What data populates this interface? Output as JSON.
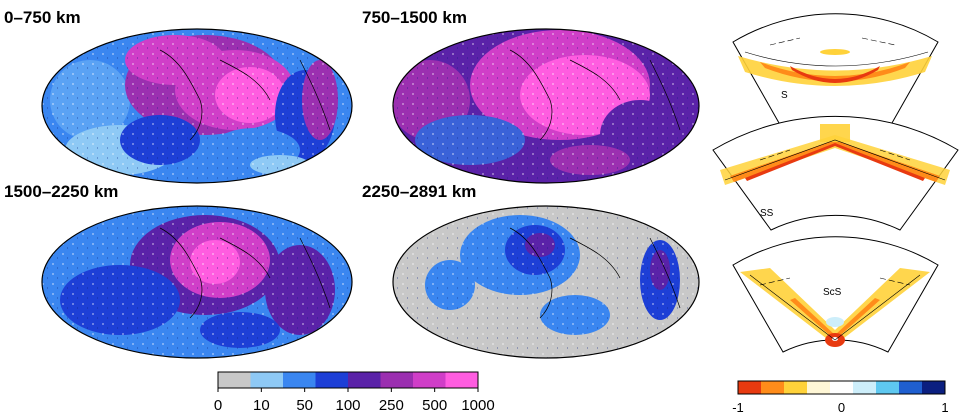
{
  "maps": [
    {
      "title": "0–750 km"
    },
    {
      "title": "750–1500 km"
    },
    {
      "title": "1500–2250 km"
    },
    {
      "title": "2250–2891 km"
    }
  ],
  "colorbar_left": {
    "tick_labels": [
      "0",
      "10",
      "50",
      "100",
      "250",
      "500",
      "1000"
    ],
    "colors": [
      "#c8c8c8",
      "#8ec9f5",
      "#3a86f0",
      "#1d3fd6",
      "#5a22a8",
      "#9b2fb0",
      "#d03ec8",
      "#ff5ce0"
    ]
  },
  "colorbar_right": {
    "tick_labels": [
      "-1",
      "0",
      "1"
    ],
    "colors": [
      "#e83a10",
      "#ff8c1a",
      "#ffd23a",
      "#fff7d6",
      "#ffffff",
      "#cdeefa",
      "#5ec8f0",
      "#1f5fd0",
      "#0b1f80"
    ]
  },
  "kernels": [
    {
      "label": "S"
    },
    {
      "label": "SS"
    },
    {
      "label": "ScS"
    }
  ]
}
